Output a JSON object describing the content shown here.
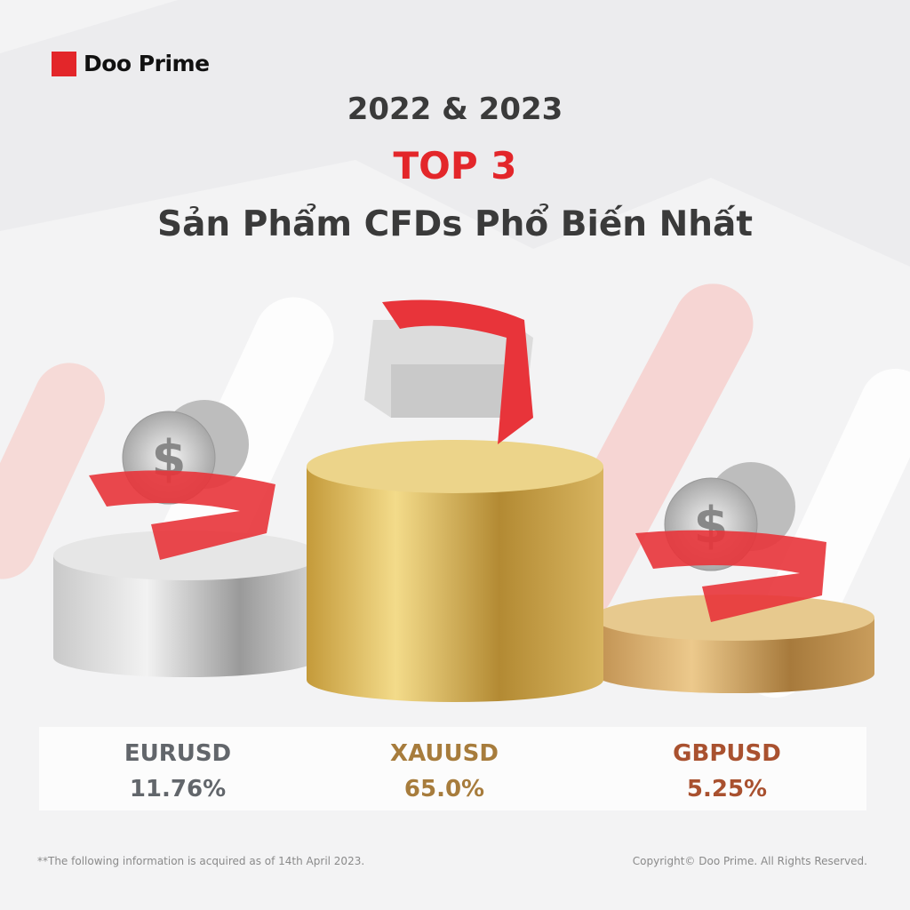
{
  "brand": {
    "name": "Doo Prime",
    "accent": "#e3262a"
  },
  "header": {
    "years": "2022 & 2023",
    "highlight": "TOP 3",
    "subtitle": "Sản Phẩm CFDs Phổ Biến Nhất"
  },
  "products": [
    {
      "symbol": "EURUSD",
      "share": "11.76%",
      "color": "#62666b",
      "podium": "silver"
    },
    {
      "symbol": "XAUUSD",
      "share": "65.0%",
      "color": "#a77c3c",
      "podium": "gold"
    },
    {
      "symbol": "GBPUSD",
      "share": "5.25%",
      "color": "#a9512f",
      "podium": "bronze"
    }
  ],
  "footer": {
    "note": "**The following information is acquired as of 14th April 2023.",
    "copyright": "Copyright© Doo Prime. All Rights Reserved."
  }
}
